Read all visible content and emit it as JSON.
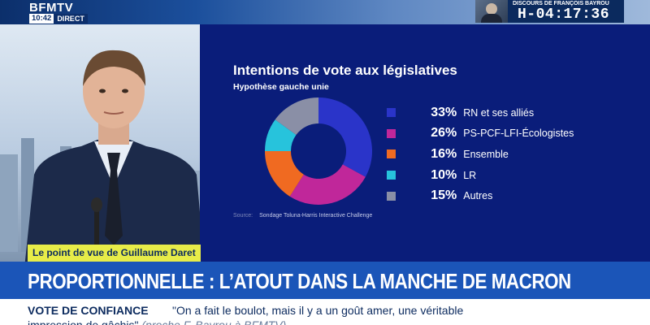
{
  "channel": {
    "logo": "BFMTV",
    "clock": "10:42",
    "live_label": "DIRECT"
  },
  "countdown": {
    "label": "DISCOURS DE FRANÇOIS BAYROU",
    "time": "H-04:17:36"
  },
  "chart_data": {
    "type": "pie",
    "title": "Intentions de vote aux législatives",
    "subtitle": "Hypothèse gauche unie",
    "source_tag": "Source:",
    "source": "Sondage Toluna-Harris Interactive Challenge",
    "series": [
      {
        "name": "RN et ses alliés",
        "value": 33,
        "color": "#2a34c9"
      },
      {
        "name": "PS-PCF-LFI-Écologistes",
        "value": 26,
        "color": "#c0279a"
      },
      {
        "name": "Ensemble",
        "value": 16,
        "color": "#f06a21"
      },
      {
        "name": "LR",
        "value": 10,
        "color": "#27c3dc"
      },
      {
        "name": "Autres",
        "value": 15,
        "color": "#8a8fa6"
      }
    ],
    "value_suffix": "%"
  },
  "lower_third": {
    "speaker_tag": "Le point de vue de Guillaume Daret",
    "headline": "PROPORTIONNELLE : L’ATOUT DANS LA MANCHE DE MACRON",
    "ticker_label": "VOTE DE CONFIANCE",
    "ticker_text": "\"On a fait le boulot, mais il y a un goût amer, une véritable",
    "ticker_line2": "impression de gâchis\"",
    "ticker_credit": "(proche F. Bayrou à BFMTV)"
  }
}
